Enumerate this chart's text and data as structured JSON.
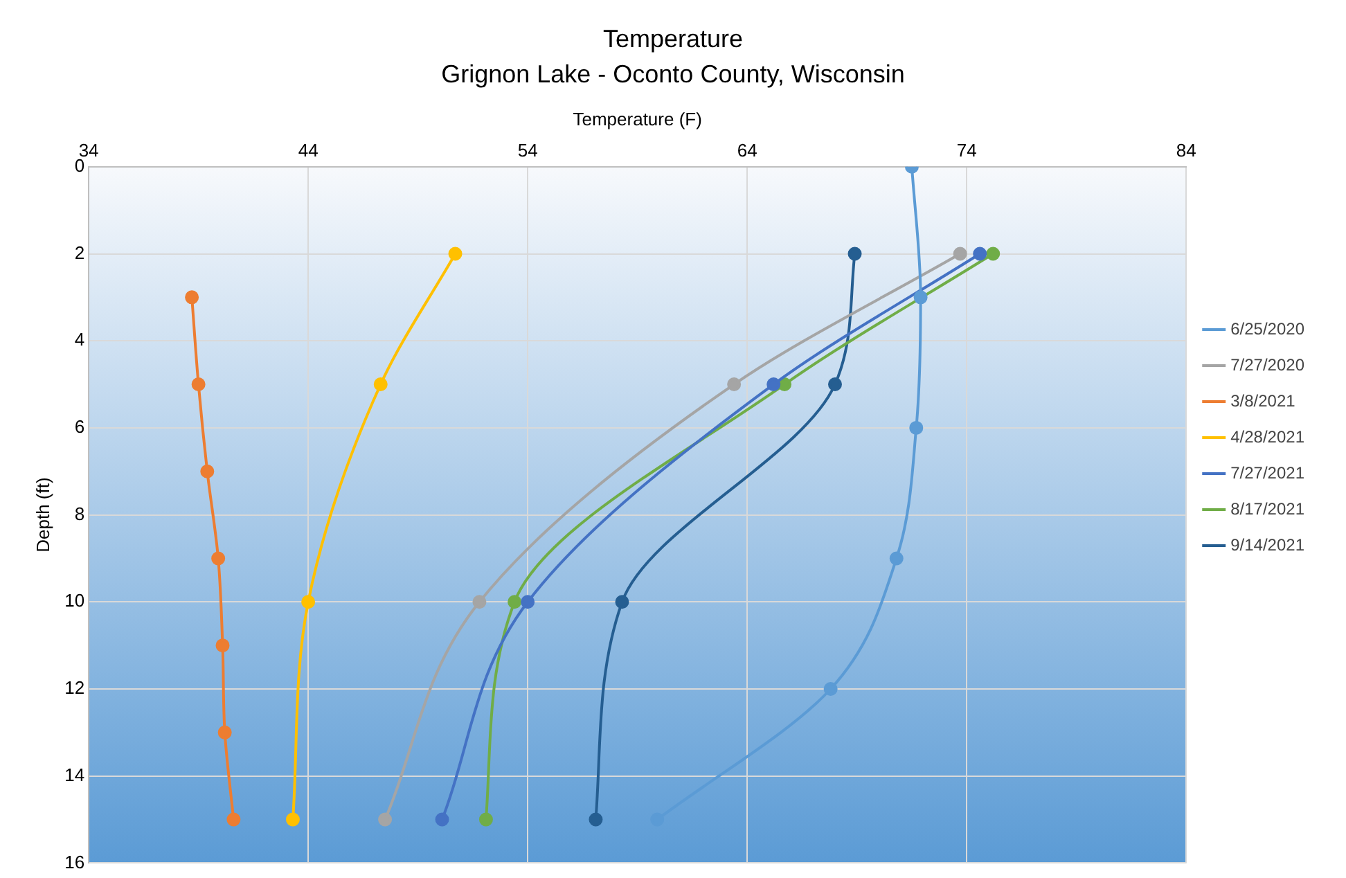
{
  "chart_data": {
    "type": "line",
    "title": "Temperature",
    "subtitle": "Grignon Lake - Oconto County, Wisconsin",
    "xlabel": "Temperature (F)",
    "ylabel": "Depth (ft)",
    "xlim": [
      34,
      84
    ],
    "xticks": [
      34,
      44,
      54,
      64,
      74,
      84
    ],
    "ylim": [
      16,
      0
    ],
    "yticks": [
      0,
      2,
      4,
      6,
      8,
      10,
      12,
      14,
      16
    ],
    "grid": true,
    "legend": "right",
    "marker": "circle",
    "line_style": "solid",
    "series": [
      {
        "name": "6/25/2020",
        "color": "#5b9bd5",
        "x": [
          71.5,
          71.9,
          71.7,
          70.8,
          67.8,
          59.9
        ],
        "values": [
          0,
          3,
          6,
          9,
          12,
          15
        ]
      },
      {
        "name": "7/27/2020",
        "color": "#a5a5a5",
        "x": [
          73.7,
          63.4,
          51.8,
          47.5
        ],
        "values": [
          2,
          5,
          10,
          15
        ]
      },
      {
        "name": "3/8/2021",
        "color": "#ed7d31",
        "x": [
          38.7,
          39.0,
          39.4,
          39.9,
          40.1,
          40.2,
          40.6
        ],
        "values": [
          3,
          5,
          7,
          9,
          11,
          13,
          15
        ]
      },
      {
        "name": "4/28/2021",
        "color": "#ffc000",
        "x": [
          50.7,
          47.3,
          44.0,
          43.3
        ],
        "values": [
          2,
          5,
          10,
          15
        ]
      },
      {
        "name": "7/27/2021",
        "color": "#4472c4",
        "x": [
          74.6,
          65.2,
          54.0,
          50.1
        ],
        "values": [
          2,
          5,
          10,
          15
        ]
      },
      {
        "name": "8/17/2021",
        "color": "#70ad47",
        "x": [
          75.2,
          65.7,
          53.4,
          52.1
        ],
        "values": [
          2,
          5,
          10,
          15
        ]
      },
      {
        "name": "9/14/2021",
        "color": "#255e91",
        "x": [
          68.9,
          68.0,
          58.3,
          57.1
        ],
        "values": [
          2,
          5,
          10,
          15
        ]
      }
    ]
  }
}
